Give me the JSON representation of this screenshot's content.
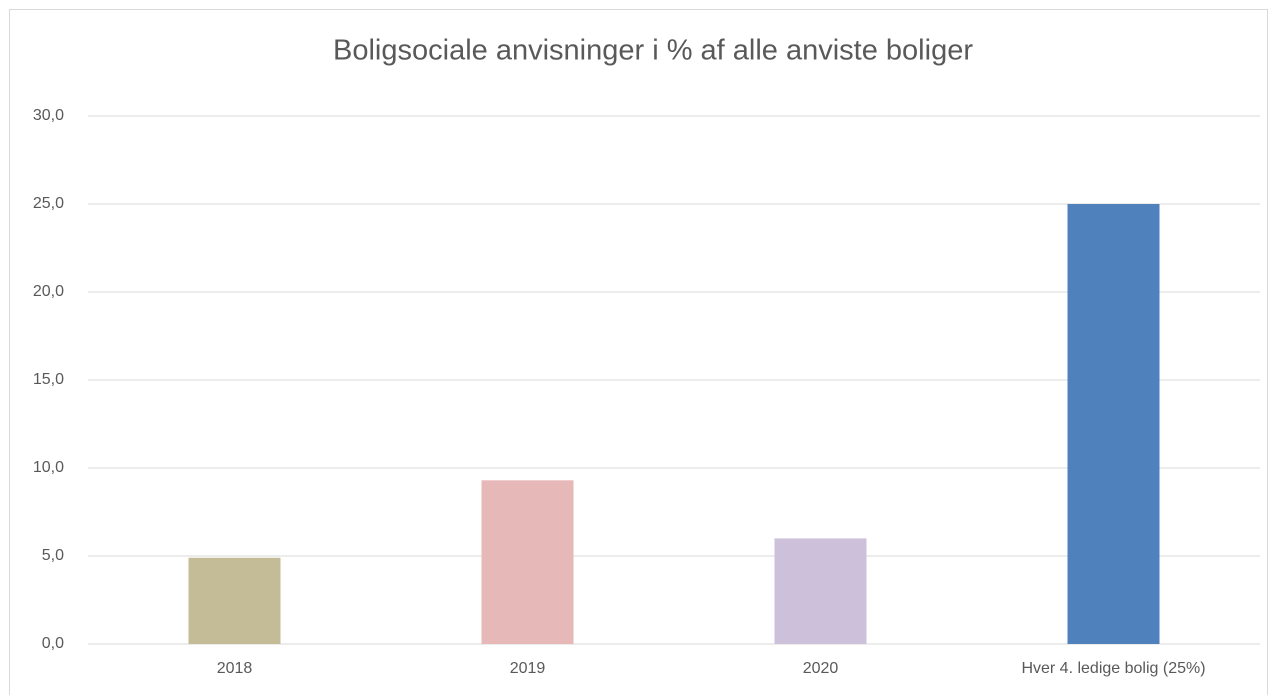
{
  "chart_data": {
    "type": "bar",
    "title": "Boligsociale anvisninger i % af alle anviste boliger",
    "categories": [
      "2018",
      "2019",
      "2020",
      "Hver 4. ledige bolig (25%)"
    ],
    "values": [
      4.9,
      9.3,
      6.0,
      25.0
    ],
    "colors": [
      "#c4bc96",
      "#e6b8b7",
      "#ccc0da",
      "#4f81bd"
    ],
    "ylim": [
      0,
      30
    ],
    "yticks": [
      {
        "value": 0,
        "label": "0,0"
      },
      {
        "value": 5,
        "label": "5,0"
      },
      {
        "value": 10,
        "label": "10,0"
      },
      {
        "value": 15,
        "label": "15,0"
      },
      {
        "value": 20,
        "label": "20,0"
      },
      {
        "value": 25,
        "label": "25,0"
      },
      {
        "value": 30,
        "label": "30,0"
      }
    ],
    "grid": true
  }
}
